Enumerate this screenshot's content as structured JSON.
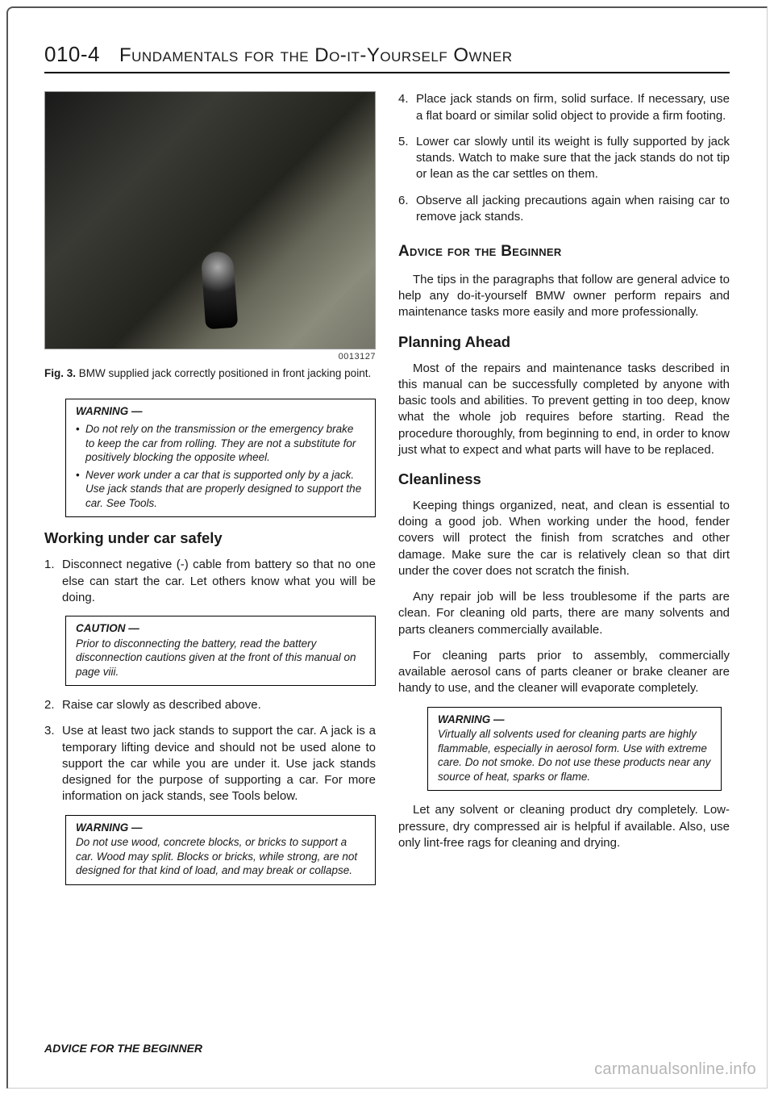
{
  "header": {
    "page_id": "010-4",
    "title": "Fundamentals for the Do-it-Yourself Owner"
  },
  "left": {
    "fig_id": "0013127",
    "fig_label": "Fig. 3.",
    "fig_caption": "BMW supplied jack correctly positioned in front jacking point.",
    "warning1": {
      "title": "WARNING —",
      "items": [
        "Do not rely on the transmission or the emergency brake to keep the car from rolling. They are not a substitute for positively blocking the opposite wheel.",
        "Never work under a car that is supported only by a jack. Use jack stands that are properly designed to support the car. See Tools."
      ]
    },
    "h3_work": "Working under car safely",
    "steps_a": [
      "Disconnect negative (-) cable from battery so that no one else can start the car. Let others know what you will be doing."
    ],
    "caution1": {
      "title": "CAUTION —",
      "text": "Prior to disconnecting the battery, read the battery disconnection cautions given at the front of this manual on page viii."
    },
    "steps_b": [
      "Raise car slowly as described above.",
      "Use at least two jack stands to support the car. A jack is a temporary lifting device and should not be used alone to support the car while you are under it. Use jack stands designed for the purpose of supporting a car. For more information on jack stands, see Tools below."
    ],
    "warning2": {
      "title": "WARNING —",
      "text": "Do not use wood, concrete blocks, or bricks to support a car. Wood may split. Blocks or bricks, while strong, are not designed for that kind of load, and may break or collapse."
    }
  },
  "right": {
    "steps_c": [
      "Place jack stands on firm, solid surface. If necessary, use a flat board or similar solid object to provide a firm footing.",
      "Lower car slowly until its weight is fully supported by jack stands. Watch to make sure that the jack stands do not tip or lean as the car settles on them.",
      "Observe all jacking precautions again when raising car to remove jack stands."
    ],
    "h2_advice": "Advice for the Beginner",
    "intro": "The tips in the paragraphs that follow are general advice to help any do-it-yourself BMW owner perform repairs and maintenance tasks more easily and more professionally.",
    "h3_planning": "Planning Ahead",
    "planning_text": "Most of the repairs and maintenance tasks described in this manual can be successfully completed by anyone with basic tools and abilities. To prevent getting in too deep, know what the whole job requires before starting. Read the procedure thoroughly, from beginning to end, in order to know just what to expect and what parts will have to be replaced.",
    "h3_clean": "Cleanliness",
    "clean_p1": "Keeping things organized, neat, and clean is essential to doing a good job. When working under the hood, fender covers will protect the finish from scratches and other damage. Make sure the car is relatively clean so that dirt under the cover does not scratch the finish.",
    "clean_p2": "Any repair job will be less troublesome if the parts are clean. For cleaning old parts, there are many solvents and parts cleaners commercially available.",
    "clean_p3": "For cleaning parts prior to assembly, commercially available aerosol cans of parts cleaner or brake cleaner are handy to use, and the cleaner will evaporate completely.",
    "warning3": {
      "title": "WARNING —",
      "text": "Virtually all solvents used for cleaning parts are highly flammable, especially in aerosol form. Use with extreme care. Do not smoke. Do not use these products near any source of heat, sparks or flame."
    },
    "clean_p4": "Let any solvent or cleaning product dry completely. Low-pressure, dry compressed air is helpful if available. Also, use only lint-free rags for cleaning and drying."
  },
  "footer": "ADVICE FOR THE BEGINNER",
  "watermark": "carmanualsonline.info"
}
